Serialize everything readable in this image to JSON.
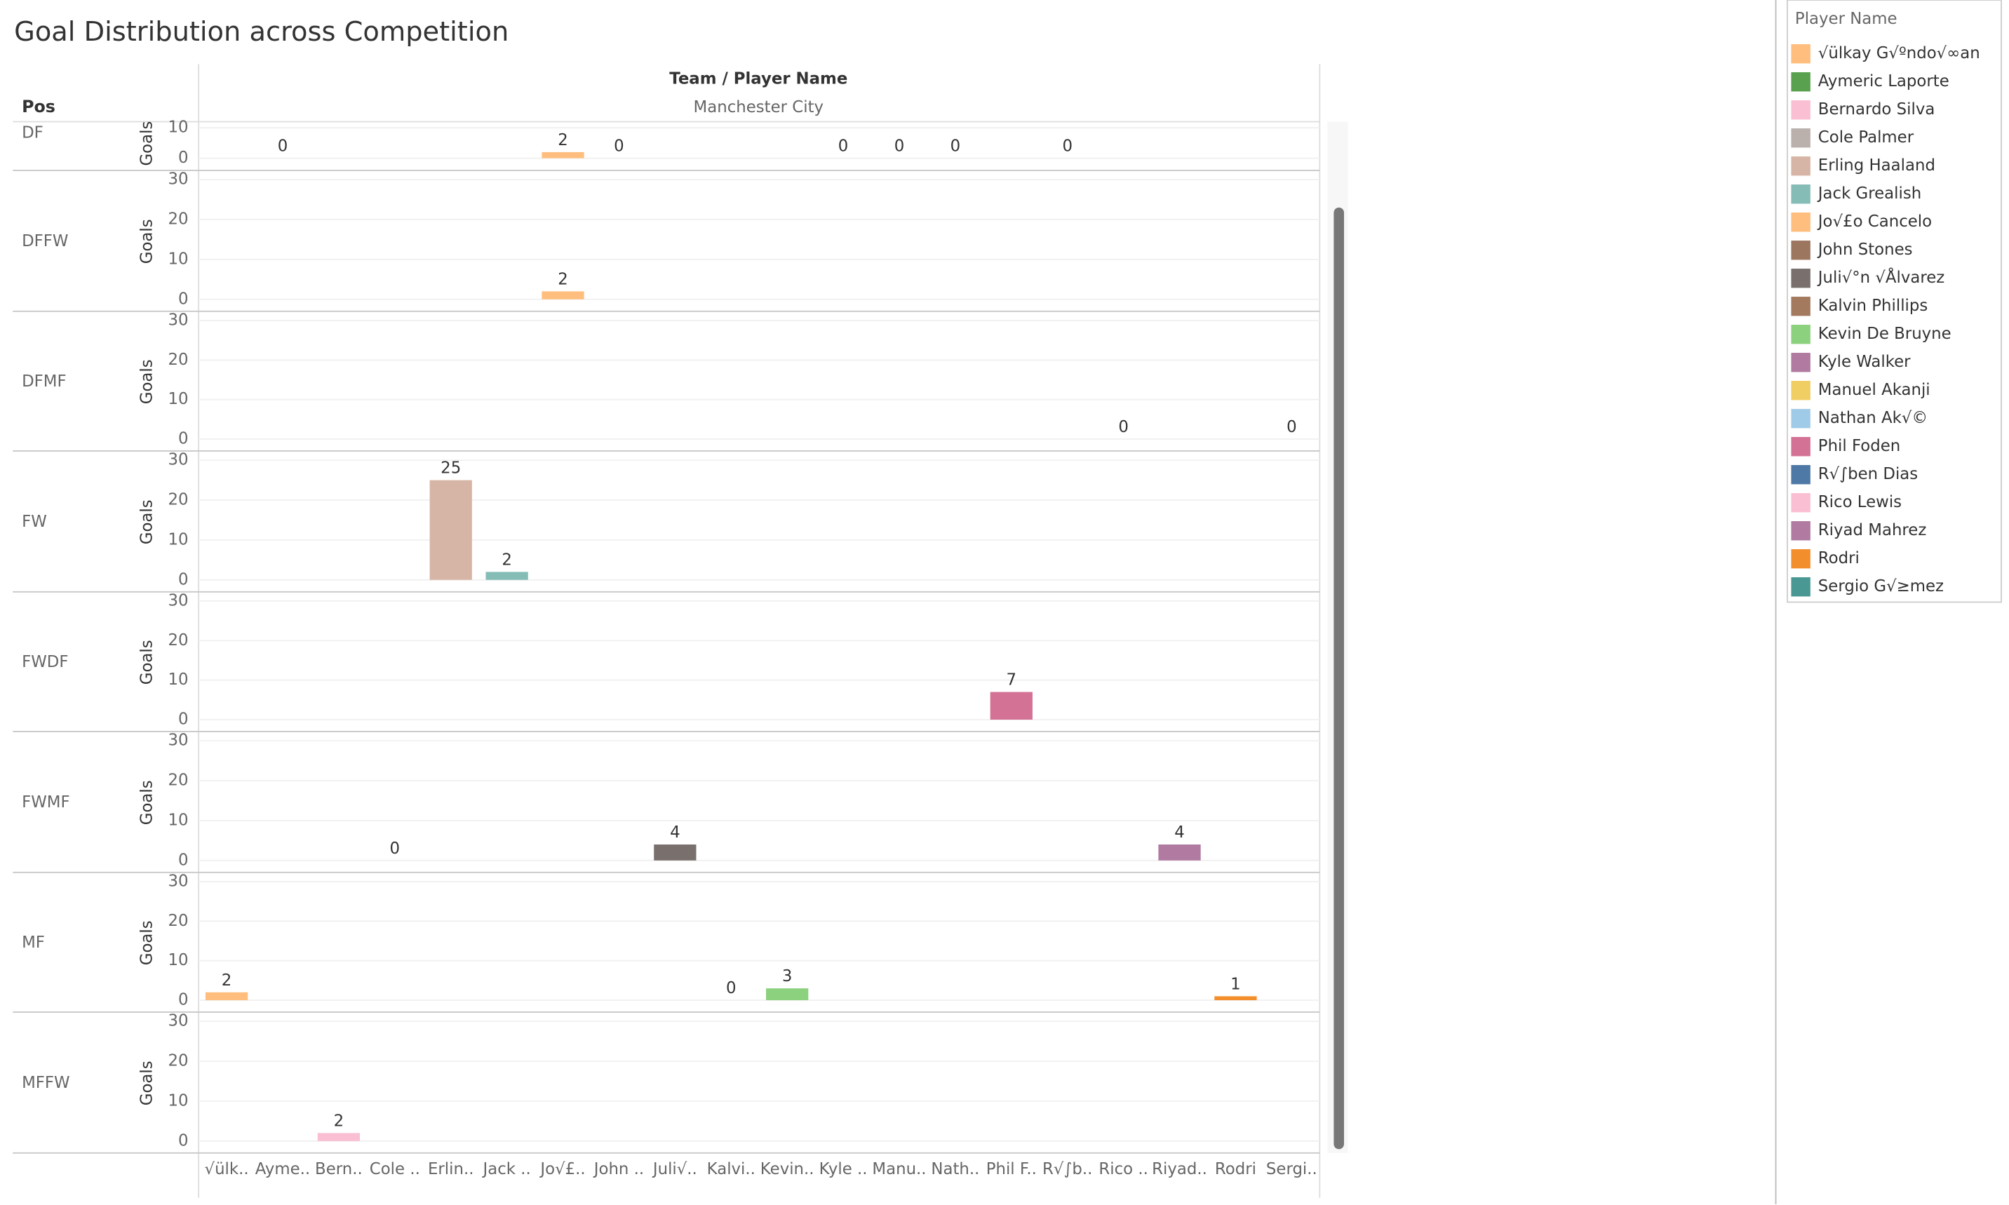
{
  "chart_data": {
    "type": "bar",
    "title": "Goal Distribution across Competition",
    "row_header": "Pos",
    "column_header": "Team / Player Name",
    "team": "Manchester City",
    "y_label": "Goals",
    "legend_title": "Player Name",
    "categories": [
      "√ülk..",
      "Ayme..",
      "Bern..",
      "Cole ..",
      "Erlin..",
      "Jack ..",
      "Jo√£..",
      "John ..",
      "Juli√..",
      "Kalvi..",
      "Kevin..",
      "Kyle ..",
      "Manu..",
      "Nath..",
      "Phil F..",
      "R√∫b..",
      "Rico ..",
      "Riyad..",
      "Rodri",
      "Sergi.."
    ],
    "series": [
      {
        "name": "√ülkay G√ºndo√∞an",
        "color": "#ffbe7d"
      },
      {
        "name": "Aymeric Laporte",
        "color": "#59a14f"
      },
      {
        "name": "Bernardo Silva",
        "color": "#fabfd2"
      },
      {
        "name": "Cole Palmer",
        "color": "#bab0ac"
      },
      {
        "name": "Erling Haaland",
        "color": "#d7b5a6"
      },
      {
        "name": "Jack Grealish",
        "color": "#86bcb6"
      },
      {
        "name": "Jo√£o Cancelo",
        "color": "#ffbe7d"
      },
      {
        "name": "John Stones",
        "color": "#9d7660"
      },
      {
        "name": "Juli√°n √Ålvarez",
        "color": "#79706e"
      },
      {
        "name": "Kalvin Phillips",
        "color": "#a47a5e"
      },
      {
        "name": "Kevin De Bruyne",
        "color": "#8cd17d"
      },
      {
        "name": "Kyle Walker",
        "color": "#b07aa1"
      },
      {
        "name": "Manuel Akanji",
        "color": "#f1ce63"
      },
      {
        "name": "Nathan Ak√©",
        "color": "#a0cbe8"
      },
      {
        "name": "Phil Foden",
        "color": "#d37295"
      },
      {
        "name": "R√∫ben Dias",
        "color": "#4e79a7"
      },
      {
        "name": "Rico Lewis",
        "color": "#fabfd2"
      },
      {
        "name": "Riyad Mahrez",
        "color": "#b07aa1"
      },
      {
        "name": "Rodri",
        "color": "#f28e2b"
      },
      {
        "name": "Sergio G√≥mez",
        "color": "#499894"
      }
    ],
    "panels": [
      {
        "name": "DF",
        "ylim": [
          -4,
          12
        ],
        "yticks": [
          0,
          10
        ],
        "values": [
          null,
          0,
          null,
          null,
          null,
          null,
          2,
          0,
          null,
          null,
          null,
          0,
          0,
          0,
          null,
          0,
          null,
          null,
          null,
          null
        ]
      },
      {
        "name": "DFFW",
        "ylim": [
          -3,
          32
        ],
        "yticks": [
          0,
          10,
          20,
          30
        ],
        "values": [
          null,
          null,
          null,
          null,
          null,
          null,
          2,
          null,
          null,
          null,
          null,
          null,
          null,
          null,
          null,
          null,
          null,
          null,
          null,
          null
        ]
      },
      {
        "name": "DFMF",
        "ylim": [
          -3,
          32
        ],
        "yticks": [
          0,
          10,
          20,
          30
        ],
        "values": [
          null,
          null,
          null,
          null,
          null,
          null,
          null,
          null,
          null,
          null,
          null,
          null,
          null,
          null,
          null,
          null,
          0,
          null,
          null,
          0
        ]
      },
      {
        "name": "FW",
        "ylim": [
          -3,
          32
        ],
        "yticks": [
          0,
          10,
          20,
          30
        ],
        "values": [
          null,
          null,
          null,
          null,
          25,
          2,
          null,
          null,
          null,
          null,
          null,
          null,
          null,
          null,
          null,
          null,
          null,
          null,
          null,
          null
        ]
      },
      {
        "name": "FWDF",
        "ylim": [
          -3,
          32
        ],
        "yticks": [
          0,
          10,
          20,
          30
        ],
        "values": [
          null,
          null,
          null,
          null,
          null,
          null,
          null,
          null,
          null,
          null,
          null,
          null,
          null,
          null,
          7,
          null,
          null,
          null,
          null,
          null
        ]
      },
      {
        "name": "FWMF",
        "ylim": [
          -3,
          32
        ],
        "yticks": [
          0,
          10,
          20,
          30
        ],
        "values": [
          null,
          null,
          null,
          0,
          null,
          null,
          null,
          null,
          4,
          null,
          null,
          null,
          null,
          null,
          null,
          null,
          null,
          4,
          null,
          null
        ]
      },
      {
        "name": "MF",
        "ylim": [
          -3,
          32
        ],
        "yticks": [
          0,
          10,
          20,
          30
        ],
        "values": [
          2,
          null,
          null,
          null,
          null,
          null,
          null,
          null,
          null,
          0,
          3,
          null,
          null,
          null,
          null,
          null,
          null,
          null,
          1,
          null
        ]
      },
      {
        "name": "MFFW",
        "ylim": [
          -3,
          32
        ],
        "yticks": [
          0,
          10,
          20,
          30
        ],
        "values": [
          null,
          null,
          2,
          null,
          null,
          null,
          null,
          null,
          null,
          null,
          null,
          null,
          null,
          null,
          null,
          null,
          null,
          null,
          null,
          null
        ]
      }
    ]
  }
}
